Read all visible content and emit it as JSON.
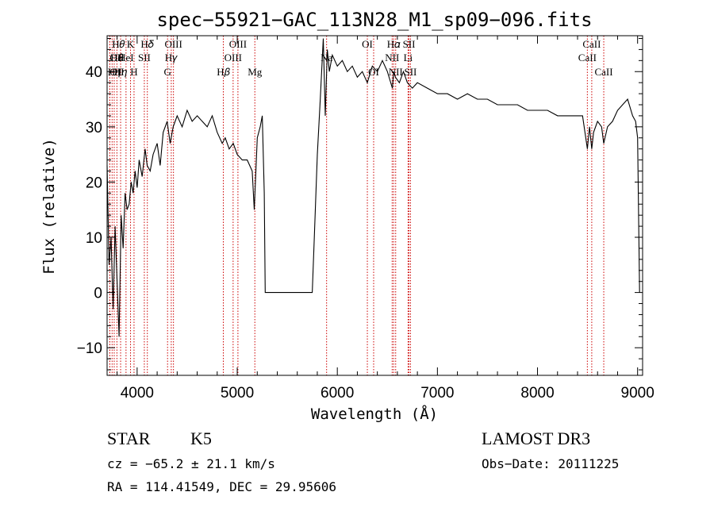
{
  "chart_data": {
    "type": "line",
    "title": "spec−55921−GAC_113N28_M1_sp09−096.fits",
    "xlabel": "Wavelength (Å)",
    "ylabel": "Flux (relative)",
    "xlim": [
      3700,
      9050
    ],
    "ylim": [
      -15,
      46.5
    ],
    "xticks": [
      4000,
      5000,
      6000,
      7000,
      8000,
      9000
    ],
    "xtick_labels": [
      "4000",
      "5000",
      "6000",
      "7000",
      "8000",
      "9000"
    ],
    "yticks": [
      -10,
      0,
      10,
      20,
      30,
      40
    ],
    "ytick_labels": [
      "−10",
      "0",
      "10",
      "20",
      "30",
      "40"
    ],
    "series": [
      {
        "name": "flux",
        "x": [
          3700,
          3720,
          3740,
          3760,
          3780,
          3800,
          3820,
          3840,
          3860,
          3880,
          3900,
          3920,
          3940,
          3960,
          3980,
          4000,
          4020,
          4050,
          4080,
          4100,
          4130,
          4160,
          4200,
          4230,
          4260,
          4300,
          4330,
          4360,
          4400,
          4450,
          4500,
          4550,
          4600,
          4650,
          4700,
          4750,
          4800,
          4850,
          4880,
          4920,
          4960,
          5000,
          5050,
          5100,
          5150,
          5170,
          5200,
          5230,
          5250,
          5270,
          5280,
          5750,
          5770,
          5800,
          5830,
          5860,
          5880,
          5900,
          5920,
          5950,
          6000,
          6050,
          6100,
          6150,
          6200,
          6250,
          6300,
          6350,
          6400,
          6450,
          6500,
          6550,
          6563,
          6580,
          6620,
          6660,
          6700,
          6750,
          6800,
          6900,
          7000,
          7100,
          7200,
          7300,
          7400,
          7500,
          7600,
          7700,
          7800,
          7900,
          8000,
          8100,
          8200,
          8300,
          8400,
          8450,
          8498,
          8520,
          8542,
          8560,
          8600,
          8640,
          8662,
          8700,
          8750,
          8800,
          8850,
          8900,
          8950,
          8980,
          9000,
          9020
        ],
        "values": [
          23,
          5,
          10,
          -3,
          12,
          2,
          -8,
          14,
          8,
          18,
          15,
          16,
          20,
          18,
          22,
          19,
          24,
          21,
          26,
          23,
          22,
          25,
          27,
          23,
          29,
          31,
          27,
          30,
          32,
          30,
          33,
          31,
          32,
          31,
          30,
          32,
          29,
          27,
          28,
          26,
          27,
          25,
          24,
          24,
          22,
          15,
          28,
          30,
          32,
          18,
          0,
          0,
          10,
          25,
          35,
          46,
          32,
          44,
          40,
          43,
          41,
          42,
          40,
          41,
          39,
          40,
          38,
          41,
          40,
          42,
          40,
          37,
          40,
          39,
          38,
          40,
          38,
          37,
          38,
          37,
          36,
          36,
          35,
          36,
          35,
          35,
          34,
          34,
          34,
          33,
          33,
          33,
          32,
          32,
          32,
          32,
          26,
          30,
          26,
          29,
          31,
          30,
          27,
          30,
          31,
          33,
          34,
          35,
          32,
          31,
          28,
          0
        ]
      }
    ],
    "lines": [
      {
        "x": 3750,
        "name": "H𝜃",
        "row": 0,
        "align": "start"
      },
      {
        "x": 3727,
        "name": "OII",
        "row": 1,
        "align": "start"
      },
      {
        "x": 3727,
        "name": "OII",
        "row": 2,
        "align": "start"
      },
      {
        "x": 3771,
        "name": "H𝜂",
        "row": 2,
        "align": "middle"
      },
      {
        "x": 3798,
        "name": "H𝜃",
        "row": 1,
        "align": "middle"
      },
      {
        "x": 3835,
        "name": "H𝜂",
        "row": 2,
        "align": "middle"
      },
      {
        "x": 3889,
        "name": "HeI",
        "row": 1,
        "align": "middle"
      },
      {
        "x": 3934,
        "name": "K",
        "row": 0,
        "align": "middle"
      },
      {
        "x": 3969,
        "name": "H",
        "row": 2,
        "align": "middle"
      },
      {
        "x": 4072,
        "name": "SII",
        "row": 1,
        "align": "middle"
      },
      {
        "x": 4102,
        "name": "H𝛿",
        "row": 0,
        "align": "middle"
      },
      {
        "x": 4304,
        "name": "G",
        "row": 2,
        "align": "middle"
      },
      {
        "x": 4341,
        "name": "H𝛾",
        "row": 1,
        "align": "middle"
      },
      {
        "x": 4363,
        "name": "OIII",
        "row": 0,
        "align": "middle"
      },
      {
        "x": 4861,
        "name": "H𝛽",
        "row": 2,
        "align": "middle"
      },
      {
        "x": 4959,
        "name": "OIII",
        "row": 1,
        "align": "middle"
      },
      {
        "x": 5007,
        "name": "OIII",
        "row": 0,
        "align": "middle"
      },
      {
        "x": 5176,
        "name": "Mg",
        "row": 2,
        "align": "middle"
      },
      {
        "x": 5893,
        "name": "Na",
        "row": 1,
        "align": "middle"
      },
      {
        "x": 6300,
        "name": "OI",
        "row": 0,
        "align": "middle"
      },
      {
        "x": 6363,
        "name": "OI",
        "row": 2,
        "align": "middle"
      },
      {
        "x": 6548,
        "name": "NII",
        "row": 1,
        "align": "middle"
      },
      {
        "x": 6563,
        "name": "H𝛼",
        "row": 0,
        "align": "middle"
      },
      {
        "x": 6583,
        "name": "NII",
        "row": 2,
        "align": "middle"
      },
      {
        "x": 6707,
        "name": "Li",
        "row": 1,
        "align": "middle"
      },
      {
        "x": 6716,
        "name": "SII",
        "row": 0,
        "align": "middle"
      },
      {
        "x": 6731,
        "name": "SII",
        "row": 2,
        "align": "middle"
      },
      {
        "x": 8498,
        "name": "CaII",
        "row": 1,
        "align": "middle"
      },
      {
        "x": 8542,
        "name": "CaII",
        "row": 0,
        "align": "middle"
      },
      {
        "x": 8662,
        "name": "CaII",
        "row": 2,
        "align": "middle"
      }
    ]
  },
  "info": {
    "class": "STAR",
    "subclass": "K5",
    "redshift": "cz = −65.2 ± 21.1 km/s",
    "coords": "RA = 114.41549, DEC =  29.95606",
    "survey": "LAMOST DR3",
    "obs_date": "Obs−Date: 20111225"
  },
  "colors": {
    "line_marker": "#cc0000",
    "spectrum": "#000000"
  }
}
